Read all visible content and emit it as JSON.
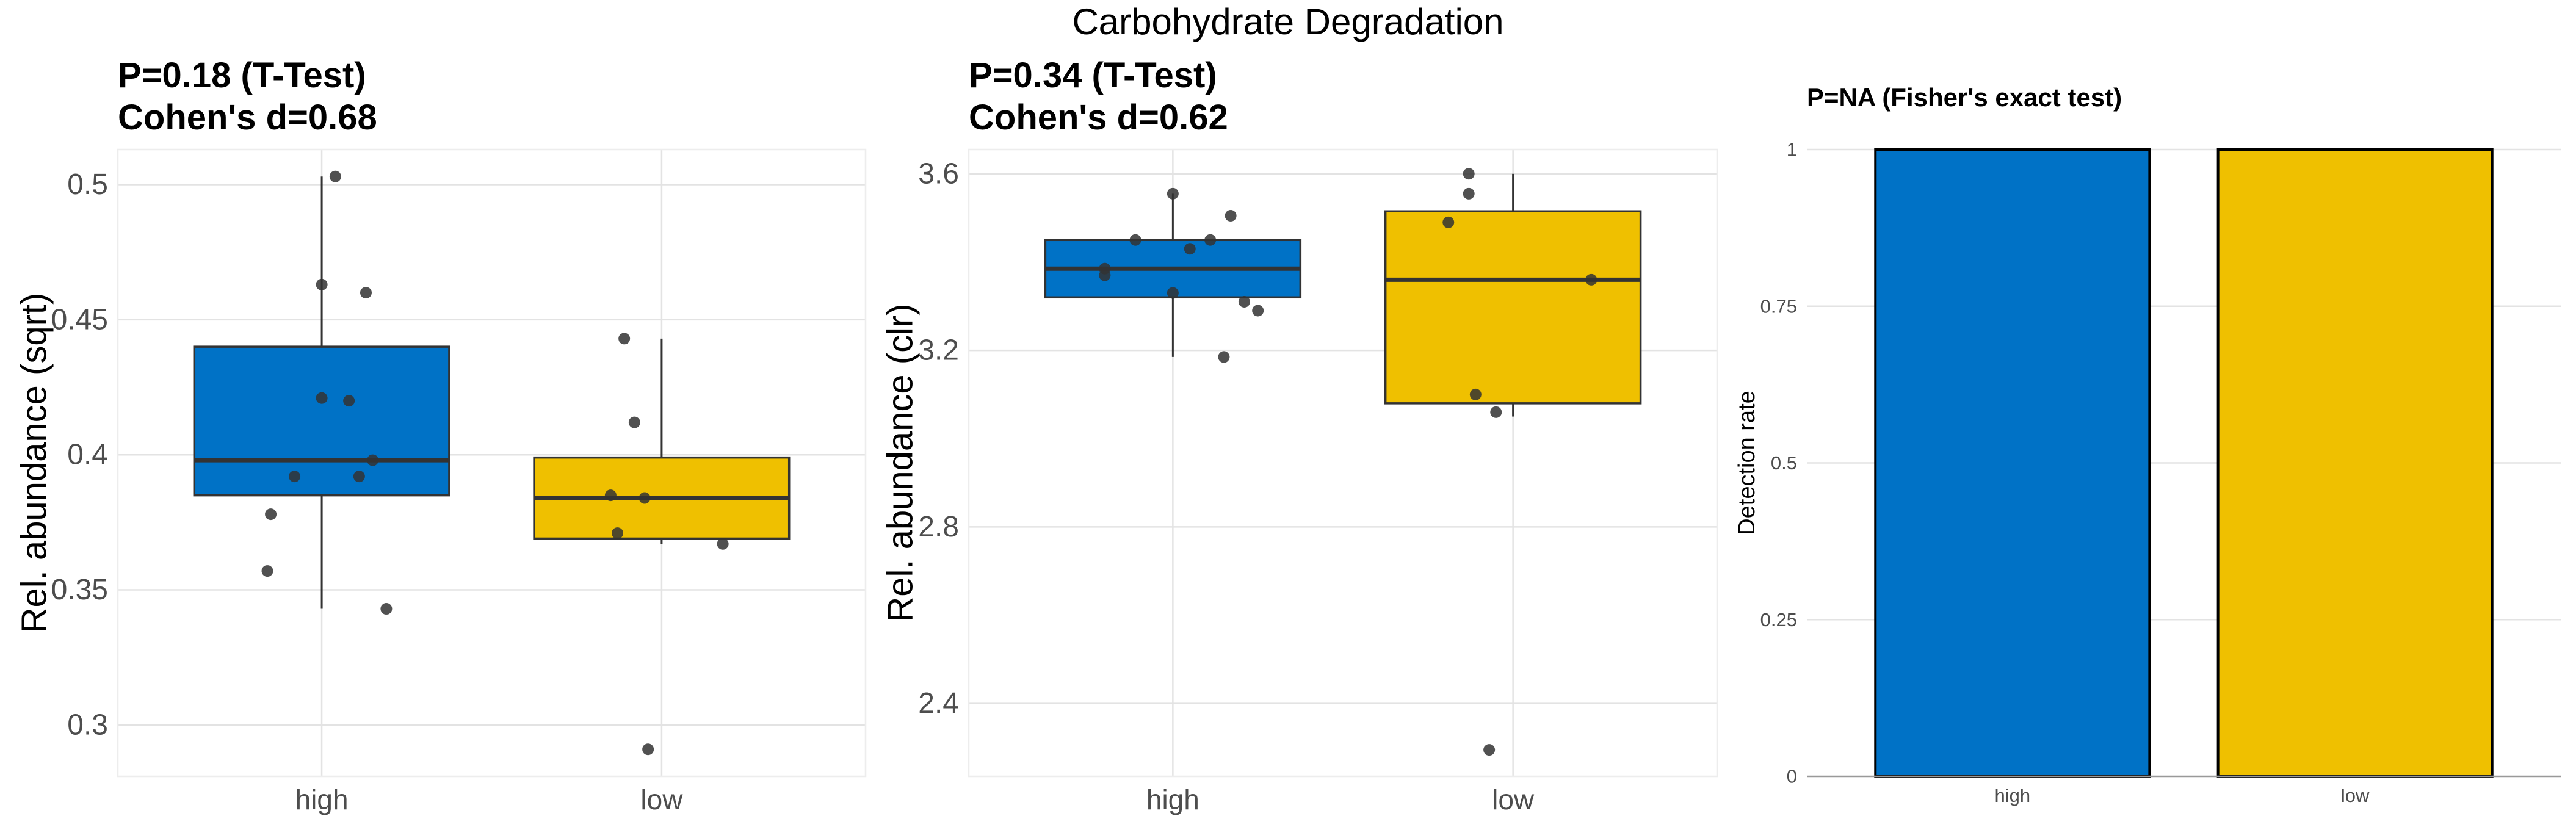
{
  "chart_data": {
    "title": "Carbohydrate Degradation",
    "colors": {
      "high": "#0072C6",
      "low": "#EFC000"
    },
    "panels": [
      {
        "type": "box",
        "title_line1": "P=0.18 (T-Test)",
        "title_line2": "Cohen's d=0.68",
        "ylabel": "Rel. abundance (sqrt)",
        "ylim": [
          0.281,
          0.513
        ],
        "yticks": [
          0.3,
          0.35,
          0.4,
          0.45,
          0.5
        ],
        "ytick_labels": [
          "0.3",
          "0.35",
          "0.4",
          "0.45",
          "0.5"
        ],
        "categories": [
          "high",
          "low"
        ],
        "boxes": [
          {
            "category": "high",
            "q1": 0.385,
            "median": 0.398,
            "q3": 0.44,
            "whisker_low": 0.343,
            "whisker_high": 0.503
          },
          {
            "category": "low",
            "q1": 0.369,
            "median": 0.384,
            "q3": 0.399,
            "whisker_low": 0.367,
            "whisker_high": 0.443
          }
        ],
        "points": [
          [
            {
              "jitter": 0.04,
              "y": 0.503
            },
            {
              "jitter": 0.0,
              "y": 0.463
            },
            {
              "jitter": 0.13,
              "y": 0.46
            },
            {
              "jitter": 0.0,
              "y": 0.421
            },
            {
              "jitter": 0.08,
              "y": 0.42
            },
            {
              "jitter": 0.15,
              "y": 0.398
            },
            {
              "jitter": -0.08,
              "y": 0.392
            },
            {
              "jitter": 0.11,
              "y": 0.392
            },
            {
              "jitter": -0.15,
              "y": 0.378
            },
            {
              "jitter": -0.16,
              "y": 0.357
            },
            {
              "jitter": 0.19,
              "y": 0.343
            }
          ],
          [
            {
              "jitter": -0.11,
              "y": 0.443
            },
            {
              "jitter": -0.08,
              "y": 0.412
            },
            {
              "jitter": -0.15,
              "y": 0.385
            },
            {
              "jitter": -0.05,
              "y": 0.384
            },
            {
              "jitter": -0.13,
              "y": 0.371
            },
            {
              "jitter": 0.18,
              "y": 0.367
            },
            {
              "jitter": -0.04,
              "y": 0.291
            }
          ]
        ]
      },
      {
        "type": "box",
        "title_line1": "P=0.34 (T-Test)",
        "title_line2": "Cohen's d=0.62",
        "ylabel": "Rel. abundance (clr)",
        "ylim": [
          2.235,
          3.655
        ],
        "yticks": [
          2.4,
          2.8,
          3.2,
          3.6
        ],
        "ytick_labels": [
          "2.4",
          "2.8",
          "3.2",
          "3.6"
        ],
        "categories": [
          "high",
          "low"
        ],
        "boxes": [
          {
            "category": "high",
            "q1": 3.32,
            "median": 3.385,
            "q3": 3.45,
            "whisker_low": 3.185,
            "whisker_high": 3.555
          },
          {
            "category": "low",
            "q1": 3.08,
            "median": 3.36,
            "q3": 3.515,
            "whisker_low": 3.05,
            "whisker_high": 3.6
          }
        ],
        "points": [
          [
            {
              "jitter": 0.0,
              "y": 3.555
            },
            {
              "jitter": 0.17,
              "y": 3.505
            },
            {
              "jitter": -0.11,
              "y": 3.45
            },
            {
              "jitter": 0.11,
              "y": 3.45
            },
            {
              "jitter": 0.05,
              "y": 3.43
            },
            {
              "jitter": -0.2,
              "y": 3.385
            },
            {
              "jitter": -0.2,
              "y": 3.37
            },
            {
              "jitter": 0.0,
              "y": 3.33
            },
            {
              "jitter": 0.21,
              "y": 3.31
            },
            {
              "jitter": 0.25,
              "y": 3.29
            },
            {
              "jitter": 0.15,
              "y": 3.185
            }
          ],
          [
            {
              "jitter": -0.13,
              "y": 3.6
            },
            {
              "jitter": -0.13,
              "y": 3.555
            },
            {
              "jitter": -0.19,
              "y": 3.49
            },
            {
              "jitter": 0.23,
              "y": 3.36
            },
            {
              "jitter": -0.11,
              "y": 3.1
            },
            {
              "jitter": -0.05,
              "y": 3.06
            },
            {
              "jitter": -0.07,
              "y": 2.295
            }
          ]
        ]
      },
      {
        "type": "bar",
        "title": "P=NA (Fisher's exact test)",
        "ylabel": "Detection rate",
        "ylim": [
          0,
          1
        ],
        "yticks": [
          0,
          0.25,
          0.5,
          0.75,
          1
        ],
        "ytick_labels": [
          "0",
          "0.25",
          "0.5",
          "0.75",
          "1"
        ],
        "categories": [
          "high",
          "low"
        ],
        "values": [
          1,
          1
        ]
      }
    ]
  }
}
